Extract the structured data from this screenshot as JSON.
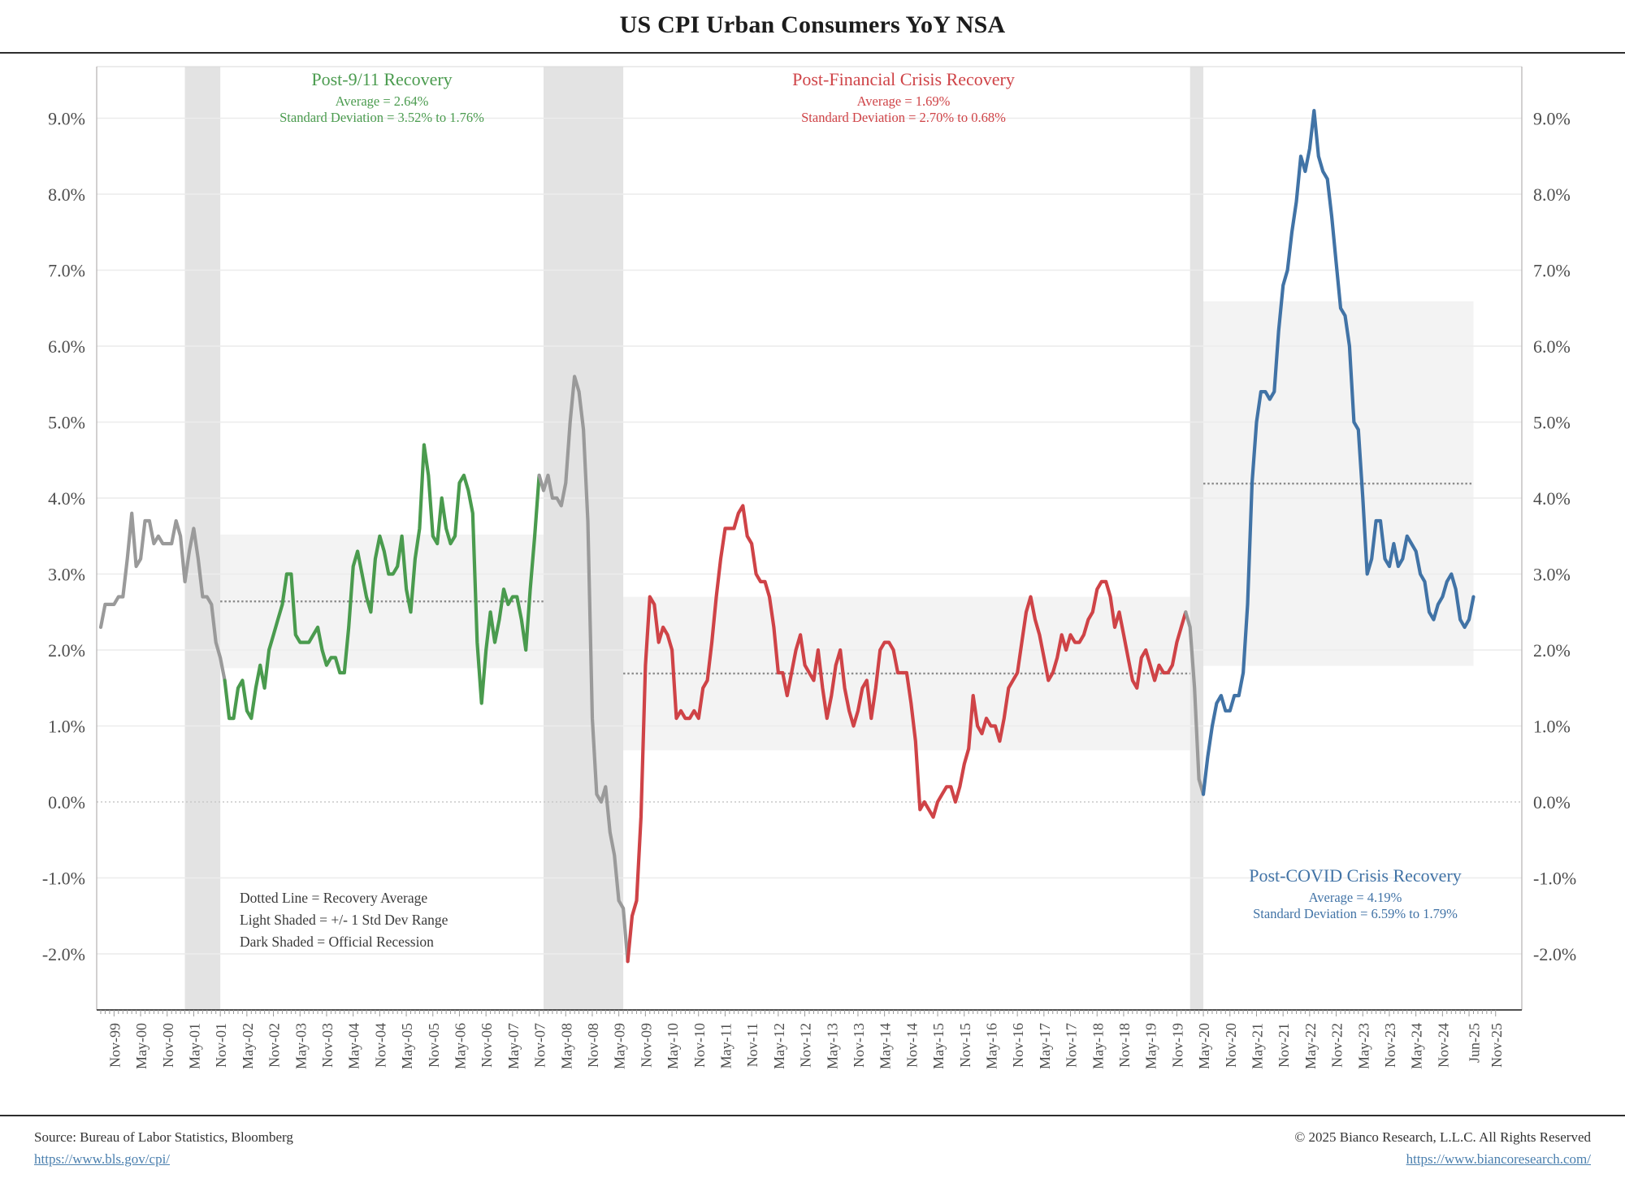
{
  "title": "US CPI Urban Consumers YoY NSA",
  "colors": {
    "green": "#4a9b4e",
    "red": "#cf4347",
    "blue": "#4173a6",
    "gray_line": "#9a9a9a",
    "recession_band": "#e3e3e3",
    "stddev_band": "#f3f3f3",
    "gridline": "#ececec",
    "zero_line": "#c8c8c8",
    "average_dotted": "#8c8c8c",
    "axis_line": "#b5b0b0",
    "axis_bottom": "#3a3a3a",
    "tick_text": "#4d4d4d",
    "link": "#4a7fae"
  },
  "annotations": {
    "post911": {
      "title": "Post-9/11 Recovery",
      "average": "Average = 2.64%",
      "stddev": "Standard Deviation = 3.52% to 1.76%"
    },
    "gfc": {
      "title": "Post-Financial Crisis Recovery",
      "average": "Average = 1.69%",
      "stddev": "Standard Deviation = 2.70% to 0.68%"
    },
    "covid": {
      "title": "Post-COVID Crisis Recovery",
      "average": "Average = 4.19%",
      "stddev": "Standard Deviation = 6.59% to 1.79%"
    },
    "legend_line1": "Dotted Line = Recovery Average",
    "legend_line2": "Light Shaded = +/- 1 Std Dev Range",
    "legend_line3": "Dark Shaded = Official Recession"
  },
  "footer": {
    "source": "Source: Bureau of Labor Statistics, Bloomberg",
    "source_link": "https://www.bls.gov/cpi/",
    "copyright": "© 2025 Bianco Research, L.L.C. All Rights Reserved",
    "copyright_link": "https://www.biancoresearch.com/"
  },
  "chart_data": {
    "type": "line",
    "title": "US CPI Urban Consumers YoY NSA",
    "x_unit": "month",
    "x_start": "Aug-1999",
    "x_end": "Jun-2025",
    "ylim": [
      -2.75,
      9.7
    ],
    "grid": "horizontal-1pct",
    "values": [
      2.3,
      2.6,
      2.6,
      2.6,
      2.7,
      2.7,
      3.2,
      3.8,
      3.1,
      3.2,
      3.7,
      3.7,
      3.4,
      3.5,
      3.4,
      3.4,
      3.4,
      3.7,
      3.5,
      2.9,
      3.3,
      3.6,
      3.2,
      2.7,
      2.7,
      2.6,
      2.1,
      1.9,
      1.6,
      1.1,
      1.1,
      1.5,
      1.6,
      1.2,
      1.1,
      1.5,
      1.8,
      1.5,
      2.0,
      2.2,
      2.4,
      2.6,
      3.0,
      3.0,
      2.2,
      2.1,
      2.1,
      2.1,
      2.2,
      2.3,
      2.0,
      1.8,
      1.9,
      1.9,
      1.7,
      1.7,
      2.3,
      3.1,
      3.3,
      3.0,
      2.7,
      2.5,
      3.2,
      3.5,
      3.3,
      3.0,
      3.0,
      3.1,
      3.5,
      2.8,
      2.5,
      3.2,
      3.6,
      4.7,
      4.3,
      3.5,
      3.4,
      4.0,
      3.6,
      3.4,
      3.5,
      4.2,
      4.3,
      4.1,
      3.8,
      2.1,
      1.3,
      2.0,
      2.5,
      2.1,
      2.4,
      2.8,
      2.6,
      2.7,
      2.7,
      2.4,
      2.0,
      2.8,
      3.5,
      4.3,
      4.1,
      4.3,
      4.0,
      4.0,
      3.9,
      4.2,
      5.0,
      5.6,
      5.4,
      4.9,
      3.7,
      1.1,
      0.1,
      0.0,
      0.2,
      -0.4,
      -0.7,
      -1.3,
      -1.4,
      -2.1,
      -1.5,
      -1.3,
      -0.2,
      1.8,
      2.7,
      2.6,
      2.1,
      2.3,
      2.2,
      2.0,
      1.1,
      1.2,
      1.1,
      1.1,
      1.2,
      1.1,
      1.5,
      1.6,
      2.1,
      2.7,
      3.2,
      3.6,
      3.6,
      3.6,
      3.8,
      3.9,
      3.5,
      3.4,
      3.0,
      2.9,
      2.9,
      2.7,
      2.3,
      1.7,
      1.7,
      1.4,
      1.7,
      2.0,
      2.2,
      1.8,
      1.7,
      1.6,
      2.0,
      1.5,
      1.1,
      1.4,
      1.8,
      2.0,
      1.5,
      1.2,
      1.0,
      1.2,
      1.5,
      1.6,
      1.1,
      1.5,
      2.0,
      2.1,
      2.1,
      2.0,
      1.7,
      1.7,
      1.7,
      1.3,
      0.8,
      -0.1,
      0.0,
      -0.1,
      -0.2,
      0.0,
      0.1,
      0.2,
      0.2,
      0.0,
      0.2,
      0.5,
      0.7,
      1.4,
      1.0,
      0.9,
      1.1,
      1.0,
      1.0,
      0.8,
      1.1,
      1.5,
      1.6,
      1.7,
      2.1,
      2.5,
      2.7,
      2.4,
      2.2,
      1.9,
      1.6,
      1.7,
      1.9,
      2.2,
      2.0,
      2.2,
      2.1,
      2.1,
      2.2,
      2.4,
      2.5,
      2.8,
      2.9,
      2.9,
      2.7,
      2.3,
      2.5,
      2.2,
      1.9,
      1.6,
      1.5,
      1.9,
      2.0,
      1.8,
      1.6,
      1.8,
      1.7,
      1.7,
      1.8,
      2.1,
      2.3,
      2.5,
      2.3,
      1.5,
      0.3,
      0.1,
      0.6,
      1.0,
      1.3,
      1.4,
      1.2,
      1.2,
      1.4,
      1.4,
      1.7,
      2.6,
      4.2,
      5.0,
      5.4,
      5.4,
      5.3,
      5.4,
      6.2,
      6.8,
      7.0,
      7.5,
      7.9,
      8.5,
      8.3,
      8.6,
      9.1,
      8.5,
      8.3,
      8.2,
      7.7,
      7.1,
      6.5,
      6.4,
      6.0,
      5.0,
      4.9,
      4.0,
      3.0,
      3.2,
      3.7,
      3.7,
      3.2,
      3.1,
      3.4,
      3.1,
      3.2,
      3.5,
      3.4,
      3.3,
      3.0,
      2.9,
      2.5,
      2.4,
      2.6,
      2.7,
      2.9,
      3.0,
      2.8,
      2.4,
      2.3,
      2.4,
      2.7
    ],
    "segments": [
      {
        "name": "pre-2001-expansion",
        "color": "gray",
        "from": 0,
        "to": 28
      },
      {
        "name": "post-911-recovery",
        "color": "green",
        "from": 28,
        "to": 99
      },
      {
        "name": "financial-crisis",
        "color": "gray",
        "from": 99,
        "to": 119
      },
      {
        "name": "post-financial-crisis-recovery",
        "color": "red",
        "from": 119,
        "to": 245
      },
      {
        "name": "covid-crash",
        "color": "gray",
        "from": 245,
        "to": 249
      },
      {
        "name": "post-covid-recovery",
        "color": "blue",
        "from": 249,
        "to": 310
      }
    ],
    "recessions": [
      {
        "name": "recession-2001",
        "from": 19,
        "to": 27
      },
      {
        "name": "recession-2008",
        "from": 100,
        "to": 118
      },
      {
        "name": "recession-2020",
        "from": 246,
        "to": 249
      }
    ],
    "recoveries": [
      {
        "name": "post-911",
        "color": "green",
        "from": 27,
        "to": 100,
        "average": 2.64,
        "band_low": 1.76,
        "band_high": 3.52
      },
      {
        "name": "post-gfc",
        "color": "red",
        "from": 118,
        "to": 246,
        "average": 1.69,
        "band_low": 0.68,
        "band_high": 2.7
      },
      {
        "name": "post-covid",
        "color": "blue",
        "from": 249,
        "to": 310,
        "average": 4.19,
        "band_low": 1.79,
        "band_high": 6.59
      }
    ],
    "x_tick_indices": [
      3,
      9,
      15,
      21,
      27,
      33,
      39,
      45,
      51,
      57,
      63,
      69,
      75,
      81,
      87,
      93,
      99,
      105,
      111,
      117,
      123,
      129,
      135,
      141,
      147,
      153,
      159,
      165,
      171,
      177,
      183,
      189,
      195,
      201,
      207,
      213,
      219,
      225,
      231,
      237,
      243,
      249,
      255,
      261,
      267,
      273,
      279,
      285,
      291,
      297,
      303,
      310,
      315
    ],
    "x_tick_labels": [
      "Nov-99",
      "May-00",
      "Nov-00",
      "May-01",
      "Nov-01",
      "May-02",
      "Nov-02",
      "May-03",
      "Nov-03",
      "May-04",
      "Nov-04",
      "May-05",
      "Nov-05",
      "May-06",
      "Nov-06",
      "May-07",
      "Nov-07",
      "May-08",
      "Nov-08",
      "May-09",
      "Nov-09",
      "May-10",
      "Nov-10",
      "May-11",
      "Nov-11",
      "May-12",
      "Nov-12",
      "May-13",
      "Nov-13",
      "May-14",
      "Nov-14",
      "May-15",
      "Nov-15",
      "May-16",
      "Nov-16",
      "May-17",
      "Nov-17",
      "May-18",
      "Nov-18",
      "May-19",
      "Nov-19",
      "May-20",
      "Nov-20",
      "May-21",
      "Nov-21",
      "May-22",
      "Nov-22",
      "May-23",
      "Nov-23",
      "May-24",
      "Nov-24",
      "Jun-25",
      "Nov-25"
    ],
    "y_tick_values": [
      9,
      8,
      7,
      6,
      5,
      4,
      3,
      2,
      1,
      0,
      -1,
      -2
    ],
    "y_tick_labels": [
      "9.0%",
      "8.0%",
      "7.0%",
      "6.0%",
      "5.0%",
      "4.0%",
      "3.0%",
      "2.0%",
      "1.0%",
      "0.0%",
      "-1.0%",
      "-2.0%"
    ]
  }
}
